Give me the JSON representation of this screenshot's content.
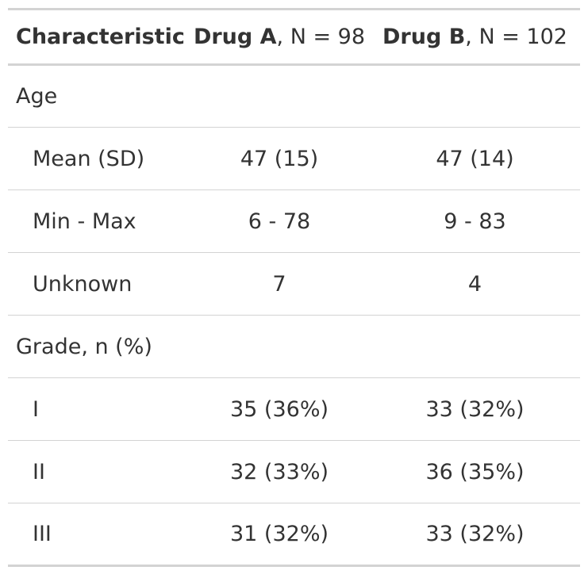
{
  "table": {
    "header": {
      "characteristic": "Characteristic",
      "group_a_name": "Drug A",
      "group_a_n": ", N = 98",
      "group_b_name": "Drug B",
      "group_b_n": ", N = 102"
    },
    "rows": [
      {
        "label": "Age",
        "a": "",
        "b": ""
      },
      {
        "label": "Mean (SD)",
        "a": "47 (15)",
        "b": "47 (14)"
      },
      {
        "label": "Min - Max",
        "a": "6 - 78",
        "b": "9 - 83"
      },
      {
        "label": "Unknown",
        "a": "7",
        "b": "4"
      },
      {
        "label": "Grade, n (%)",
        "a": "",
        "b": ""
      },
      {
        "label": "I",
        "a": "35 (36%)",
        "b": "33 (32%)"
      },
      {
        "label": "II",
        "a": "32 (33%)",
        "b": "36 (35%)"
      },
      {
        "label": "III",
        "a": "31 (32%)",
        "b": "33 (32%)"
      }
    ]
  },
  "colors": {
    "text": "#333333",
    "rule": "#d3d3d3"
  }
}
